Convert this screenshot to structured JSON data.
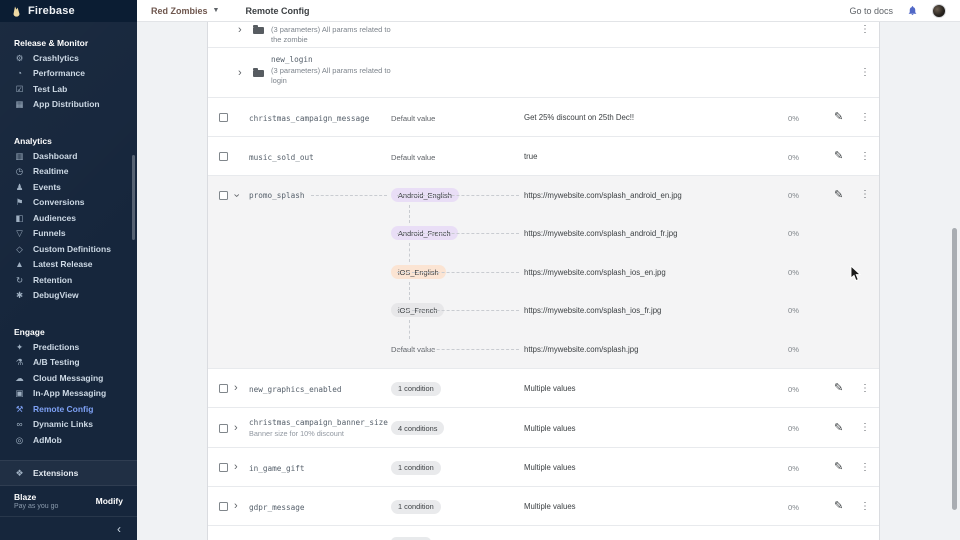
{
  "sidebar": {
    "logo_text": "Firebase",
    "sections": [
      {
        "title": "Release & Monitor",
        "items": [
          {
            "label": "Crashlytics",
            "icon": "crashlytics-icon",
            "glyph": "⚙"
          },
          {
            "label": "Performance",
            "icon": "performance-icon",
            "glyph": "◔"
          },
          {
            "label": "Test Lab",
            "icon": "test-lab-icon",
            "glyph": "☑"
          },
          {
            "label": "App Distribution",
            "icon": "app-distribution-icon",
            "glyph": "▦"
          }
        ]
      },
      {
        "title": "Analytics",
        "items": [
          {
            "label": "Dashboard",
            "icon": "dashboard-icon",
            "glyph": "▥"
          },
          {
            "label": "Realtime",
            "icon": "realtime-icon",
            "glyph": "◷"
          },
          {
            "label": "Events",
            "icon": "events-icon",
            "glyph": "♟"
          },
          {
            "label": "Conversions",
            "icon": "conversions-icon",
            "glyph": "⚑"
          },
          {
            "label": "Audiences",
            "icon": "audiences-icon",
            "glyph": "◧"
          },
          {
            "label": "Funnels",
            "icon": "funnels-icon",
            "glyph": "▽"
          },
          {
            "label": "Custom Definitions",
            "icon": "custom-definitions-icon",
            "glyph": "◇"
          },
          {
            "label": "Latest Release",
            "icon": "latest-release-icon",
            "glyph": "▲"
          },
          {
            "label": "Retention",
            "icon": "retention-icon",
            "glyph": "↻"
          },
          {
            "label": "DebugView",
            "icon": "debugview-icon",
            "glyph": "✱"
          }
        ]
      },
      {
        "title": "Engage",
        "items": [
          {
            "label": "Predictions",
            "icon": "predictions-icon",
            "glyph": "✦"
          },
          {
            "label": "A/B Testing",
            "icon": "ab-testing-icon",
            "glyph": "⚗"
          },
          {
            "label": "Cloud Messaging",
            "icon": "cloud-messaging-icon",
            "glyph": "☁"
          },
          {
            "label": "In-App Messaging",
            "icon": "in-app-messaging-icon",
            "glyph": "▣"
          },
          {
            "label": "Remote Config",
            "icon": "remote-config-icon",
            "glyph": "⚒",
            "selected": true
          },
          {
            "label": "Dynamic Links",
            "icon": "dynamic-links-icon",
            "glyph": "∞"
          },
          {
            "label": "AdMob",
            "icon": "admob-icon",
            "glyph": "◎"
          }
        ]
      }
    ],
    "extensions_label": "Extensions",
    "plan": {
      "name": "Blaze",
      "desc": "Pay as you go",
      "action": "Modify"
    }
  },
  "topbar": {
    "project_name": "Red Zombies",
    "page_title": "Remote Config",
    "go_to_docs_label": "Go to docs"
  },
  "table": {
    "chip_colors": {
      "lavender": "#e9def6",
      "peach": "#fbe4d3",
      "gray": "#e7e7e9",
      "condition": "#e9eaec"
    },
    "rows": [
      {
        "type": "folder",
        "partial": true,
        "name": "",
        "description": "(3 parameters) All params related to the zombie"
      },
      {
        "type": "folder",
        "name": "new_login",
        "description": "(3 parameters) All params related to login"
      },
      {
        "type": "param",
        "name": "christmas_campaign_message",
        "condition_label": "Default value",
        "value": "Get 25% discount on 25th Dec!!",
        "percent": "0%"
      },
      {
        "type": "param",
        "name": "music_sold_out",
        "condition_label": "Default value",
        "value": "true",
        "percent": "0%"
      },
      {
        "type": "param-group",
        "name": "promo_splash",
        "percent": "0%",
        "entries": [
          {
            "chip": "Android_English",
            "chip_color": "lavender",
            "value": "https://mywebsite.com/splash_android_en.jpg",
            "percent": "0%"
          },
          {
            "chip": "Android_French",
            "chip_color": "lavender",
            "value": "https://mywebsite.com/splash_android_fr.jpg",
            "percent": "0%"
          },
          {
            "chip": "iOS_English",
            "chip_color": "peach",
            "value": "https://mywebsite.com/splash_ios_en.jpg",
            "percent": "0%"
          },
          {
            "chip": "iOS_French",
            "chip_color": "gray",
            "value": "https://mywebsite.com/splash_ios_fr.jpg",
            "percent": "0%"
          },
          {
            "label": "Default value",
            "value": "https://mywebsite.com/splash.jpg",
            "percent": "0%"
          }
        ]
      },
      {
        "type": "param",
        "expandable": true,
        "name": "new_graphics_enabled",
        "chip": "1 condition",
        "value": "Multiple values",
        "percent": "0%"
      },
      {
        "type": "param",
        "expandable": true,
        "name": "christmas_campaign_banner_size",
        "description": "Banner size for 10% discount",
        "chip": "4 conditions",
        "value": "Multiple values",
        "percent": "0%"
      },
      {
        "type": "param",
        "expandable": true,
        "name": "in_game_gift",
        "chip": "1 condition",
        "value": "Multiple values",
        "percent": "0%"
      },
      {
        "type": "param",
        "expandable": true,
        "name": "gdpr_message",
        "chip": "1 condition",
        "value": "Multiple values",
        "percent": "0%"
      },
      {
        "type": "partial-row"
      }
    ]
  }
}
